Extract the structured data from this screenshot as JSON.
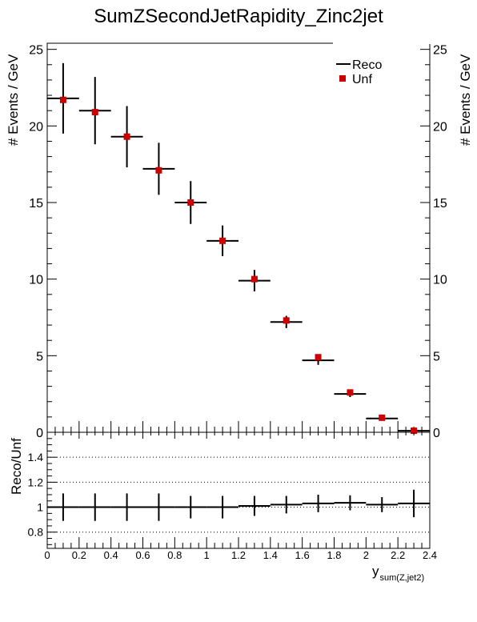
{
  "chart_data": {
    "type": "line",
    "title": "SumZSecondJetRapidity_Zinc2jet",
    "top_panel": {
      "ylabel": "# Events / GeV",
      "ylim": [
        0,
        25.4
      ],
      "yticks": [
        0,
        5,
        10,
        15,
        20,
        25
      ],
      "legend": {
        "placement": "top-right",
        "entries": [
          "Reco",
          "Unf"
        ]
      },
      "series": [
        {
          "name": "Reco",
          "style": "horizontal-bars-with-errors",
          "color": "#000000",
          "x": [
            0.1,
            0.3,
            0.5,
            0.7,
            0.9,
            1.1,
            1.3,
            1.5,
            1.7,
            1.9,
            2.1,
            2.3
          ],
          "values": [
            21.8,
            21.0,
            19.3,
            17.2,
            15.0,
            12.5,
            9.9,
            7.2,
            4.7,
            2.5,
            0.9,
            0.1
          ],
          "errors": [
            2.3,
            2.2,
            2.0,
            1.7,
            1.4,
            1.0,
            0.7,
            0.4,
            0.3,
            0.2,
            0.1,
            0.05
          ]
        },
        {
          "name": "Unf",
          "style": "markers",
          "color": "#cc0000",
          "x": [
            0.1,
            0.3,
            0.5,
            0.7,
            0.9,
            1.1,
            1.3,
            1.5,
            1.7,
            1.9,
            2.1,
            2.3
          ],
          "values": [
            21.7,
            20.9,
            19.3,
            17.1,
            15.0,
            12.5,
            10.0,
            7.3,
            4.9,
            2.6,
            0.95,
            0.1
          ]
        }
      ]
    },
    "ratio_panel": {
      "ylabel": "Reco/Unf",
      "ylim": [
        0.67,
        1.6
      ],
      "yticks": [
        0.8,
        1,
        1.2,
        1.4
      ],
      "yticklabels": [
        "0.8",
        "1",
        "1.2",
        "1.4"
      ],
      "grid": "dotted",
      "x": [
        0.1,
        0.3,
        0.5,
        0.7,
        0.9,
        1.1,
        1.3,
        1.5,
        1.7,
        1.9,
        2.1,
        2.3
      ],
      "values": [
        1.0,
        1.0,
        1.0,
        1.0,
        1.0,
        1.0,
        1.01,
        1.02,
        1.03,
        1.035,
        1.02,
        1.03
      ],
      "errors": [
        0.11,
        0.11,
        0.11,
        0.11,
        0.09,
        0.09,
        0.08,
        0.07,
        0.07,
        0.06,
        0.06,
        0.11
      ]
    },
    "x_axis": {
      "label": "y",
      "label_subscript": "sum(Z,jet2)",
      "xlim": [
        0,
        2.4
      ],
      "bin_width": 0.2,
      "ticks": [
        0,
        0.2,
        0.4,
        0.6,
        0.8,
        1,
        1.2,
        1.4,
        1.6,
        1.8,
        2,
        2.2,
        2.4
      ],
      "ticklabels": [
        "0",
        "0.2",
        "0.4",
        "0.6",
        "0.8",
        "1",
        "1.2",
        "1.4",
        "1.6",
        "1.8",
        "2",
        "2.2",
        "2.4"
      ]
    }
  }
}
